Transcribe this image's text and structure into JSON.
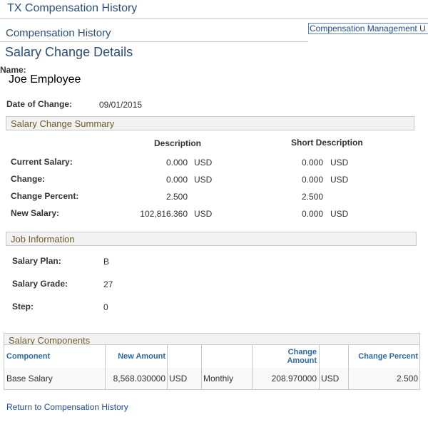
{
  "header": {
    "app_title": "TX Compensation History",
    "breadcrumb": "Compensation History",
    "top_link": "Compensation Management U"
  },
  "page": {
    "title": "Salary Change Details",
    "name_label": "Name:",
    "name_value": "Joe Employee",
    "date_label": "Date of Change:",
    "date_value": "09/01/2015"
  },
  "summary": {
    "title": "Salary Change Summary",
    "col_description": "Description",
    "col_short_description": "Short Description",
    "rows": [
      {
        "label": "Current Salary:",
        "desc_amount": "0.000",
        "desc_currency": "USD",
        "short_amount": "0.000",
        "short_currency": "USD"
      },
      {
        "label": "Change:",
        "desc_amount": "0.000",
        "desc_currency": "USD",
        "short_amount": "0.000",
        "short_currency": "USD"
      },
      {
        "label": "Change Percent:",
        "desc_amount": "2.500",
        "desc_currency": "",
        "short_amount": "2.500",
        "short_currency": ""
      },
      {
        "label": "New Salary:",
        "desc_amount": "102,816.360",
        "desc_currency": "USD",
        "short_amount": "0.000",
        "short_currency": "USD"
      }
    ]
  },
  "job": {
    "title": "Job Information",
    "rows": [
      {
        "label": "Salary Plan:",
        "value": "B"
      },
      {
        "label": "Salary Grade:",
        "value": "27"
      },
      {
        "label": "Step:",
        "value": "0"
      }
    ]
  },
  "components": {
    "title": "Salary Components",
    "headers": {
      "component": "Component",
      "new_amount": "New Amount",
      "change_amount_line1": "Change",
      "change_amount_line2": "Amount",
      "change_percent": "Change Percent"
    },
    "rows": [
      {
        "component": "Base Salary",
        "new_amount": "8,568.030000",
        "currency1": "USD",
        "frequency": "Monthly",
        "change_amount": "208.970000",
        "currency2": "USD",
        "change_percent": "2.500"
      }
    ]
  },
  "footer": {
    "return_link": "Return to Compensation History"
  }
}
